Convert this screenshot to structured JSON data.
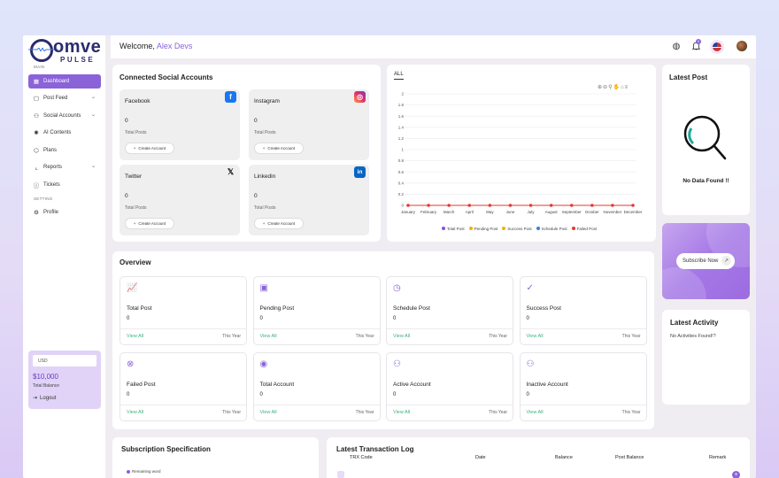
{
  "brand": {
    "name": "omve",
    "sub": "PULSE"
  },
  "header": {
    "welcome_prefix": "Welcome,",
    "user_name": "Alex Devs",
    "notif_count": "0"
  },
  "sidebar": {
    "section_main": "MAIN",
    "section_setting": "SETTING",
    "items": [
      {
        "label": "Dashboard"
      },
      {
        "label": "Post Feed"
      },
      {
        "label": "Social Accounts"
      },
      {
        "label": "AI Contents"
      },
      {
        "label": "Plans"
      },
      {
        "label": "Reports"
      },
      {
        "label": "Tickets"
      },
      {
        "label": "Profile"
      }
    ],
    "balance": {
      "currency": "USD",
      "amount": "$10,000",
      "label": "Total Balance",
      "logout": "Logout"
    }
  },
  "social": {
    "title": "Connected Social Accounts",
    "accounts": [
      {
        "name": "Facebook",
        "count": "0",
        "label": "Total Posts",
        "button": "Create Account"
      },
      {
        "name": "Instagram",
        "count": "0",
        "label": "Total Posts",
        "button": "Create Account"
      },
      {
        "name": "Twitter",
        "count": "0",
        "label": "Total Posts",
        "button": "Create Account"
      },
      {
        "name": "Linkedin",
        "count": "0",
        "label": "Total Posts",
        "button": "Create Account"
      }
    ]
  },
  "chart_data": {
    "type": "line",
    "tab": "ALL",
    "categories": [
      "January",
      "February",
      "March",
      "April",
      "May",
      "June",
      "July",
      "August",
      "September",
      "October",
      "November",
      "December"
    ],
    "y_ticks": [
      "0",
      "0.2",
      "0.4",
      "0.6",
      "0.8",
      "1",
      "1.2",
      "1.4",
      "1.6",
      "1.8",
      "2"
    ],
    "ylim": [
      0,
      2
    ],
    "series": [
      {
        "name": "Total Post",
        "color": "#8a4fd8",
        "values": [
          0,
          0,
          0,
          0,
          0,
          0,
          0,
          0,
          0,
          0,
          0,
          0
        ]
      },
      {
        "name": "Pending Post",
        "color": "#f0b400",
        "values": [
          0,
          0,
          0,
          0,
          0,
          0,
          0,
          0,
          0,
          0,
          0,
          0
        ]
      },
      {
        "name": "Success Post",
        "color": "#f0b400",
        "values": [
          0,
          0,
          0,
          0,
          0,
          0,
          0,
          0,
          0,
          0,
          0,
          0
        ]
      },
      {
        "name": "Schedule Post",
        "color": "#3a7be0",
        "values": [
          0,
          0,
          0,
          0,
          0,
          0,
          0,
          0,
          0,
          0,
          0,
          0
        ]
      },
      {
        "name": "Failed Post",
        "color": "#e53935",
        "values": [
          0,
          0,
          0,
          0,
          0,
          0,
          0,
          0,
          0,
          0,
          0,
          0
        ]
      }
    ]
  },
  "latest_post": {
    "title": "Latest Post",
    "empty": "No Data Found !!"
  },
  "subscribe": {
    "button": "Subscribe Now"
  },
  "latest_activity": {
    "title": "Latest Activity",
    "empty": "No Activities Found!?"
  },
  "overview": {
    "title": "Overview",
    "cards": [
      {
        "name": "Total Post",
        "count": "0",
        "link": "View All",
        "period": "This Year"
      },
      {
        "name": "Pending Post",
        "count": "0",
        "link": "View All",
        "period": "This Year"
      },
      {
        "name": "Schedule Post",
        "count": "0",
        "link": "View All",
        "period": "This Year"
      },
      {
        "name": "Success Post",
        "count": "0",
        "link": "View All",
        "period": "This Year"
      },
      {
        "name": "Failed Post",
        "count": "0",
        "link": "View All",
        "period": "This Year"
      },
      {
        "name": "Total Account",
        "count": "0",
        "link": "View All",
        "period": "This Year"
      },
      {
        "name": "Active Account",
        "count": "0",
        "link": "View All",
        "period": "This Year"
      },
      {
        "name": "Inactive Account",
        "count": "0",
        "link": "View All",
        "period": "This Year"
      }
    ]
  },
  "subscription": {
    "title": "Subscription Specification",
    "legend": "Remaining word"
  },
  "transactions": {
    "title": "Latest Transaction Log",
    "columns": [
      "TRX Code",
      "Date",
      "Balance",
      "Post Balance",
      "Remark"
    ]
  }
}
